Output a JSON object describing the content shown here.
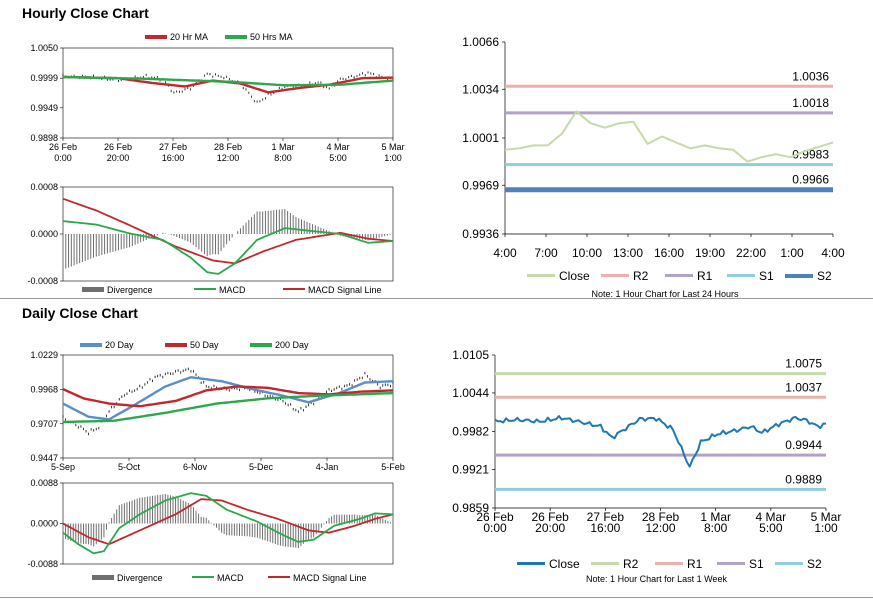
{
  "sections": {
    "hourly_title": "Hourly Close Chart",
    "daily_title": "Daily Close Chart"
  },
  "colors": {
    "ma_short": "#c0282d",
    "ma_long": "#2aa84b",
    "ma_20day": "#5b8ec9",
    "close_hourly": "#c6d9a8",
    "r2_hourly": "#eab0ac",
    "r1_hourly": "#b3a2c7",
    "s1_hourly": "#93cddd",
    "s2_hourly": "#4f81bd",
    "close_daily": "#1f77b4",
    "r2_daily": "#c6d9a8",
    "r1_daily": "#eab0ac",
    "s1_daily": "#b3a2c7",
    "s2_daily": "#93cddd",
    "macd": "#2aa84b",
    "signal": "#c0282d",
    "divergence": "#6e6e6e"
  },
  "chart_data": [
    {
      "id": "hourly-price",
      "type": "line",
      "title": "",
      "legend": [
        "20 Hr MA",
        "50 Hrs MA"
      ],
      "y_ticks": [
        "1.0050",
        "0.9999",
        "0.9949",
        "0.9898"
      ],
      "ylim": [
        0.9898,
        1.005
      ],
      "x_ticks": [
        "26 Feb\n0:00",
        "26 Feb\n20:00",
        "27 Feb\n16:00",
        "28 Feb\n12:00",
        "1 Mar\n8:00",
        "4 Mar\n5:00",
        "5 Mar\n1:00"
      ],
      "n": 120,
      "series": [
        {
          "name": "Close",
          "anchors": [
            [
              0,
              1.0002
            ],
            [
              10,
              1.0001
            ],
            [
              20,
              0.9996
            ],
            [
              30,
              1.0002
            ],
            [
              36,
              0.9997
            ],
            [
              40,
              0.9974
            ],
            [
              46,
              0.9982
            ],
            [
              52,
              1.0006
            ],
            [
              58,
              1.0001
            ],
            [
              64,
              0.999
            ],
            [
              70,
              0.9957
            ],
            [
              74,
              0.997
            ],
            [
              80,
              0.9985
            ],
            [
              86,
              0.9986
            ],
            [
              92,
              0.9992
            ],
            [
              96,
              0.9981
            ],
            [
              100,
              0.9997
            ],
            [
              106,
              1.0003
            ],
            [
              110,
              1.0008
            ],
            [
              114,
              1.0002
            ],
            [
              119,
              0.9996
            ]
          ]
        },
        {
          "name": "20 Hr MA",
          "anchors": [
            [
              0,
              1.0001
            ],
            [
              20,
              0.9999
            ],
            [
              32,
              0.9991
            ],
            [
              44,
              0.9985
            ],
            [
              54,
              0.9995
            ],
            [
              64,
              0.999
            ],
            [
              74,
              0.9975
            ],
            [
              86,
              0.9983
            ],
            [
              96,
              0.9988
            ],
            [
              108,
              0.9999
            ],
            [
              119,
              1.0
            ]
          ]
        },
        {
          "name": "50 Hrs MA",
          "anchors": [
            [
              0,
              1.0001
            ],
            [
              30,
              0.9998
            ],
            [
              60,
              0.9993
            ],
            [
              80,
              0.9987
            ],
            [
              100,
              0.9988
            ],
            [
              119,
              0.9995
            ]
          ]
        }
      ]
    },
    {
      "id": "hourly-macd",
      "type": "line",
      "y_ticks": [
        "0.0008",
        "0.0000",
        "-0.0008"
      ],
      "ylim": [
        -0.0008,
        0.0008
      ],
      "legend": [
        "Divergence",
        "MACD",
        "MACD Signal Line"
      ],
      "n": 120,
      "series": [
        {
          "name": "MACD",
          "anchors": [
            [
              0,
              0.00022
            ],
            [
              12,
              0.00016
            ],
            [
              24,
              1e-05
            ],
            [
              36,
              -0.0001
            ],
            [
              46,
              -0.0004
            ],
            [
              52,
              -0.00065
            ],
            [
              56,
              -0.00068
            ],
            [
              62,
              -0.0005
            ],
            [
              70,
              -0.0001
            ],
            [
              80,
              0.0001
            ],
            [
              90,
              5e-05
            ],
            [
              100,
              0.0
            ],
            [
              110,
              -0.00015
            ],
            [
              119,
              -0.00012
            ]
          ]
        },
        {
          "name": "MACD Signal Line",
          "anchors": [
            [
              0,
              0.0006
            ],
            [
              12,
              0.0004
            ],
            [
              24,
              0.00015
            ],
            [
              40,
              -0.0002
            ],
            [
              54,
              -0.00045
            ],
            [
              62,
              -0.0005
            ],
            [
              72,
              -0.0003
            ],
            [
              84,
              -0.0001
            ],
            [
              100,
              2e-05
            ],
            [
              110,
              -8e-05
            ],
            [
              119,
              -0.00012
            ]
          ]
        }
      ]
    },
    {
      "id": "hourly-levels",
      "type": "line",
      "y_ticks": [
        "1.0066",
        "1.0034",
        "1.0001",
        "0.9969",
        "0.9936"
      ],
      "ylim": [
        0.9936,
        1.0066
      ],
      "x_ticks": [
        "4:00",
        "7:00",
        "10:00",
        "13:00",
        "16:00",
        "19:00",
        "22:00",
        "1:00",
        "4:00"
      ],
      "legend": [
        "Close",
        "R2",
        "R1",
        "S1",
        "S2"
      ],
      "note": "Note: 1 Hour Chart for Last 24 Hours",
      "close": [
        0.9993,
        0.9994,
        0.9996,
        0.9996,
        1.0004,
        1.0019,
        1.0011,
        1.0008,
        1.0011,
        1.0012,
        0.9997,
        1.0002,
        0.9998,
        0.9994,
        0.9996,
        0.9994,
        0.9993,
        0.9985,
        0.9988,
        0.999,
        0.9988,
        0.9992,
        0.9995,
        0.9998
      ],
      "levels": [
        {
          "name": "R2",
          "value": 1.0036,
          "label": "1.0036"
        },
        {
          "name": "R1",
          "value": 1.0018,
          "label": "1.0018"
        },
        {
          "name": "S1",
          "value": 0.9983,
          "label": "0.9983"
        },
        {
          "name": "S2",
          "value": 0.9966,
          "label": "0.9966"
        }
      ]
    },
    {
      "id": "daily-price",
      "type": "line",
      "legend": [
        "20 Day",
        "50 Day",
        "200 Day"
      ],
      "y_ticks": [
        "1.0229",
        "0.9968",
        "0.9707",
        "0.9447"
      ],
      "ylim": [
        0.9447,
        1.0229
      ],
      "x_ticks": [
        "5-Sep",
        "5-Oct",
        "6-Nov",
        "5-Dec",
        "4-Jan",
        "5-Feb"
      ],
      "n": 130,
      "series": [
        {
          "name": "Close",
          "anchors": [
            [
              0,
              0.975
            ],
            [
              6,
              0.969
            ],
            [
              10,
              0.964
            ],
            [
              14,
              0.968
            ],
            [
              18,
              0.98
            ],
            [
              24,
              0.993
            ],
            [
              30,
              0.998
            ],
            [
              36,
              1.006
            ],
            [
              44,
              1.01
            ],
            [
              50,
              1.012
            ],
            [
              56,
              0.999
            ],
            [
              64,
              0.997
            ],
            [
              72,
              0.998
            ],
            [
              80,
              0.992
            ],
            [
              86,
              0.988
            ],
            [
              92,
              0.98
            ],
            [
              98,
              0.987
            ],
            [
              104,
              0.996
            ],
            [
              112,
              1.0
            ],
            [
              118,
              1.008
            ],
            [
              124,
              0.999
            ],
            [
              129,
              1.001
            ]
          ]
        },
        {
          "name": "20 Day",
          "anchors": [
            [
              0,
              0.986
            ],
            [
              10,
              0.976
            ],
            [
              18,
              0.974
            ],
            [
              28,
              0.985
            ],
            [
              40,
              0.999
            ],
            [
              50,
              1.006
            ],
            [
              62,
              1.003
            ],
            [
              74,
              0.997
            ],
            [
              86,
              0.992
            ],
            [
              96,
              0.987
            ],
            [
              108,
              0.994
            ],
            [
              118,
              1.002
            ],
            [
              129,
              1.003
            ]
          ]
        },
        {
          "name": "50 Day",
          "anchors": [
            [
              0,
              0.997
            ],
            [
              8,
              0.99
            ],
            [
              18,
              0.986
            ],
            [
              30,
              0.984
            ],
            [
              44,
              0.988
            ],
            [
              56,
              0.996
            ],
            [
              68,
              0.999
            ],
            [
              80,
              0.998
            ],
            [
              92,
              0.994
            ],
            [
              104,
              0.993
            ],
            [
              116,
              0.995
            ],
            [
              129,
              0.996
            ]
          ]
        },
        {
          "name": "200 Day",
          "anchors": [
            [
              0,
              0.972
            ],
            [
              20,
              0.973
            ],
            [
              40,
              0.979
            ],
            [
              60,
              0.986
            ],
            [
              80,
              0.99
            ],
            [
              100,
              0.992
            ],
            [
              115,
              0.993
            ],
            [
              129,
              0.994
            ]
          ]
        }
      ]
    },
    {
      "id": "daily-macd",
      "type": "line",
      "y_ticks": [
        "0.0088",
        "0.0000",
        "-0.0088"
      ],
      "ylim": [
        -0.0088,
        0.0088
      ],
      "legend": [
        "Divergence",
        "MACD",
        "MACD Signal Line"
      ],
      "n": 130,
      "series": [
        {
          "name": "MACD",
          "anchors": [
            [
              0,
              -0.002
            ],
            [
              6,
              -0.0045
            ],
            [
              12,
              -0.0065
            ],
            [
              16,
              -0.006
            ],
            [
              22,
              -0.001
            ],
            [
              30,
              0.002
            ],
            [
              40,
              0.005
            ],
            [
              50,
              0.0066
            ],
            [
              56,
              0.006
            ],
            [
              64,
              0.003
            ],
            [
              76,
              0.0004
            ],
            [
              86,
              -0.0025
            ],
            [
              92,
              -0.004
            ],
            [
              98,
              -0.0035
            ],
            [
              106,
              -0.0005
            ],
            [
              116,
              0.001
            ],
            [
              122,
              0.0022
            ],
            [
              129,
              0.002
            ]
          ]
        },
        {
          "name": "MACD Signal Line",
          "anchors": [
            [
              0,
              0.0
            ],
            [
              10,
              -0.003
            ],
            [
              18,
              -0.0045
            ],
            [
              30,
              -0.0015
            ],
            [
              44,
              0.002
            ],
            [
              54,
              0.0053
            ],
            [
              62,
              0.005
            ],
            [
              72,
              0.003
            ],
            [
              84,
              0.001
            ],
            [
              96,
              -0.0015
            ],
            [
              104,
              -0.002
            ],
            [
              114,
              -0.0005
            ],
            [
              122,
              0.001
            ],
            [
              129,
              0.002
            ]
          ]
        }
      ]
    },
    {
      "id": "daily-levels",
      "type": "line",
      "y_ticks": [
        "1.0105",
        "1.0044",
        "0.9982",
        "0.9921",
        "0.9859"
      ],
      "ylim": [
        0.9859,
        1.0105
      ],
      "x_ticks": [
        "26 Feb\n0:00",
        "26 Feb\n20:00",
        "27 Feb\n16:00",
        "28 Feb\n12:00",
        "1 Mar\n8:00",
        "4 Mar\n5:00",
        "5 Mar\n1:00"
      ],
      "legend": [
        "Close",
        "R2",
        "R1",
        "S1",
        "S2"
      ],
      "note": "Note: 1 Hour Chart for Last 1 Week",
      "n": 120,
      "close_anchors": [
        [
          0,
          0.9998
        ],
        [
          8,
          1.0001
        ],
        [
          16,
          0.9998
        ],
        [
          24,
          1.0004
        ],
        [
          32,
          0.9996
        ],
        [
          38,
          0.999
        ],
        [
          42,
          0.9972
        ],
        [
          46,
          0.9984
        ],
        [
          52,
          1.0002
        ],
        [
          58,
          1.0003
        ],
        [
          64,
          0.9985
        ],
        [
          70,
          0.9925
        ],
        [
          74,
          0.9965
        ],
        [
          80,
          0.9978
        ],
        [
          86,
          0.9983
        ],
        [
          92,
          0.999
        ],
        [
          96,
          0.998
        ],
        [
          102,
          0.9994
        ],
        [
          108,
          1.0004
        ],
        [
          112,
          1.0
        ],
        [
          116,
          0.999
        ],
        [
          119,
          0.9994
        ]
      ],
      "levels": [
        {
          "name": "R2",
          "value": 1.0075,
          "label": "1.0075"
        },
        {
          "name": "R1",
          "value": 1.0037,
          "label": "1.0037"
        },
        {
          "name": "S1",
          "value": 0.9944,
          "label": "0.9944"
        },
        {
          "name": "S2",
          "value": 0.9889,
          "label": "0.9889"
        }
      ]
    }
  ]
}
